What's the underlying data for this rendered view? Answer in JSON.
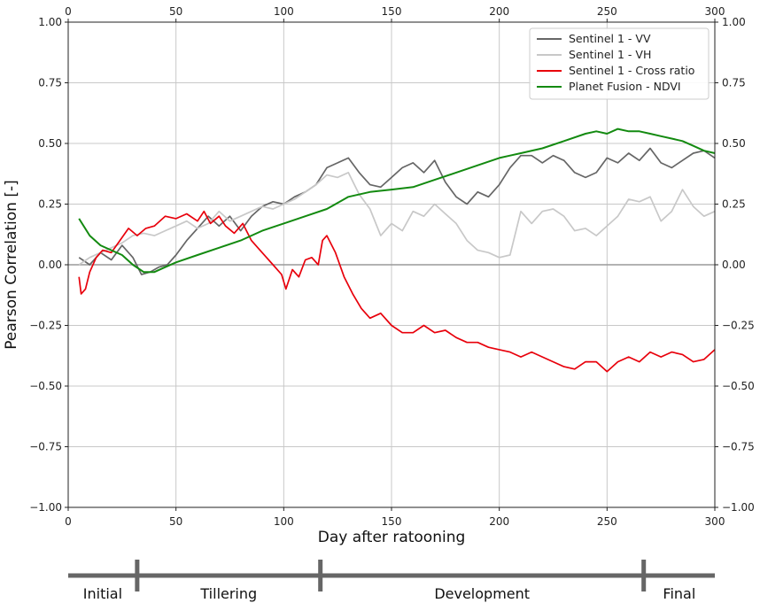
{
  "chart_data": {
    "type": "line",
    "xlabel": "Day after ratooning",
    "ylabel": "Pearson Correlation [-]",
    "xlim": [
      0,
      300
    ],
    "ylim": [
      -1.0,
      1.0
    ],
    "x_ticks": [
      0,
      50,
      100,
      150,
      200,
      250,
      300
    ],
    "y_ticks": [
      -1.0,
      -0.75,
      -0.5,
      -0.25,
      0.0,
      0.25,
      0.5,
      0.75,
      1.0
    ],
    "x_tick_labels": [
      "0",
      "50",
      "100",
      "150",
      "200",
      "250",
      "300"
    ],
    "y_tick_labels": [
      "−1.00",
      "−0.75",
      "−0.50",
      "−0.25",
      "0.00",
      "0.25",
      "0.50",
      "0.75",
      "1.00"
    ],
    "right_tick_labels": [
      "−1.00",
      "−0.75",
      "−0.50",
      "−0.25",
      "0.00",
      "0.25",
      "0.50",
      "0.75",
      "1.00"
    ],
    "grid": true,
    "legend_position": "top-right",
    "series": [
      {
        "name": "Sentinel 1 - VV",
        "color": "#666666",
        "x": [
          5,
          10,
          15,
          20,
          25,
          30,
          34,
          38,
          42,
          46,
          50,
          55,
          60,
          65,
          70,
          75,
          80,
          85,
          90,
          95,
          100,
          105,
          110,
          115,
          120,
          125,
          130,
          135,
          140,
          145,
          150,
          155,
          160,
          165,
          170,
          175,
          180,
          185,
          190,
          195,
          200,
          205,
          210,
          215,
          220,
          225,
          230,
          235,
          240,
          245,
          250,
          255,
          260,
          265,
          270,
          275,
          280,
          285,
          290,
          295,
          300
        ],
        "y": [
          0.03,
          0.0,
          0.05,
          0.02,
          0.08,
          0.03,
          -0.04,
          -0.03,
          -0.01,
          0.0,
          0.04,
          0.1,
          0.15,
          0.2,
          0.16,
          0.2,
          0.14,
          0.2,
          0.24,
          0.26,
          0.25,
          0.28,
          0.3,
          0.33,
          0.4,
          0.42,
          0.44,
          0.38,
          0.33,
          0.32,
          0.36,
          0.4,
          0.42,
          0.38,
          0.43,
          0.34,
          0.28,
          0.25,
          0.3,
          0.28,
          0.33,
          0.4,
          0.45,
          0.45,
          0.42,
          0.45,
          0.43,
          0.38,
          0.36,
          0.38,
          0.44,
          0.42,
          0.46,
          0.43,
          0.48,
          0.42,
          0.4,
          0.43,
          0.46,
          0.47,
          0.44
        ]
      },
      {
        "name": "Sentinel 1 - VH",
        "color": "#c8c8c8",
        "x": [
          5,
          10,
          15,
          20,
          25,
          30,
          35,
          40,
          45,
          50,
          55,
          60,
          65,
          70,
          75,
          80,
          85,
          90,
          95,
          100,
          105,
          110,
          115,
          120,
          125,
          130,
          135,
          140,
          145,
          150,
          155,
          160,
          165,
          170,
          175,
          180,
          185,
          190,
          195,
          200,
          205,
          210,
          215,
          220,
          225,
          230,
          235,
          240,
          245,
          250,
          255,
          260,
          265,
          270,
          275,
          280,
          285,
          290,
          295,
          300
        ],
        "y": [
          0.0,
          0.03,
          0.05,
          0.07,
          0.09,
          0.12,
          0.13,
          0.12,
          0.14,
          0.16,
          0.18,
          0.15,
          0.17,
          0.22,
          0.18,
          0.2,
          0.22,
          0.24,
          0.23,
          0.25,
          0.27,
          0.3,
          0.33,
          0.37,
          0.36,
          0.38,
          0.29,
          0.23,
          0.12,
          0.17,
          0.14,
          0.22,
          0.2,
          0.25,
          0.21,
          0.17,
          0.1,
          0.06,
          0.05,
          0.03,
          0.04,
          0.22,
          0.17,
          0.22,
          0.23,
          0.2,
          0.14,
          0.15,
          0.12,
          0.16,
          0.2,
          0.27,
          0.26,
          0.28,
          0.18,
          0.22,
          0.31,
          0.24,
          0.2,
          0.22
        ]
      },
      {
        "name": "Sentinel 1 - Cross ratio",
        "color": "#e8000b",
        "x": [
          5,
          6,
          8,
          10,
          13,
          16,
          20,
          24,
          28,
          32,
          36,
          40,
          45,
          50,
          55,
          60,
          63,
          66,
          70,
          73,
          77,
          81,
          85,
          88,
          92,
          95,
          99,
          101,
          104,
          107,
          110,
          113,
          116,
          118,
          120,
          124,
          128,
          132,
          136,
          140,
          145,
          150,
          155,
          160,
          165,
          170,
          175,
          180,
          185,
          190,
          195,
          200,
          205,
          210,
          215,
          220,
          225,
          230,
          235,
          240,
          245,
          250,
          255,
          260,
          265,
          270,
          275,
          280,
          285,
          290,
          295,
          300
        ],
        "y": [
          -0.05,
          -0.12,
          -0.1,
          -0.03,
          0.03,
          0.06,
          0.05,
          0.1,
          0.15,
          0.12,
          0.15,
          0.16,
          0.2,
          0.19,
          0.21,
          0.18,
          0.22,
          0.17,
          0.2,
          0.16,
          0.13,
          0.17,
          0.1,
          0.07,
          0.03,
          0.0,
          -0.04,
          -0.1,
          -0.02,
          -0.05,
          0.02,
          0.03,
          0.0,
          0.1,
          0.12,
          0.05,
          -0.05,
          -0.12,
          -0.18,
          -0.22,
          -0.2,
          -0.25,
          -0.28,
          -0.28,
          -0.25,
          -0.28,
          -0.27,
          -0.3,
          -0.32,
          -0.32,
          -0.34,
          -0.35,
          -0.36,
          -0.38,
          -0.36,
          -0.38,
          -0.4,
          -0.42,
          -0.43,
          -0.4,
          -0.4,
          -0.44,
          -0.4,
          -0.38,
          -0.4,
          -0.36,
          -0.38,
          -0.36,
          -0.37,
          -0.4,
          -0.39,
          -0.35
        ]
      },
      {
        "name": "Planet Fusion - NDVI",
        "color": "#138a10",
        "x": [
          5,
          10,
          15,
          20,
          25,
          30,
          35,
          40,
          45,
          50,
          60,
          70,
          80,
          90,
          100,
          110,
          120,
          130,
          140,
          150,
          160,
          170,
          180,
          190,
          200,
          205,
          210,
          220,
          230,
          240,
          245,
          250,
          255,
          260,
          265,
          270,
          275,
          280,
          285,
          290,
          295,
          300
        ],
        "y": [
          0.19,
          0.12,
          0.08,
          0.06,
          0.04,
          0.0,
          -0.03,
          -0.03,
          -0.01,
          0.01,
          0.04,
          0.07,
          0.1,
          0.14,
          0.17,
          0.2,
          0.23,
          0.28,
          0.3,
          0.31,
          0.32,
          0.35,
          0.38,
          0.41,
          0.44,
          0.45,
          0.46,
          0.48,
          0.51,
          0.54,
          0.55,
          0.54,
          0.56,
          0.55,
          0.55,
          0.54,
          0.53,
          0.52,
          0.51,
          0.49,
          0.47,
          0.46
        ]
      }
    ]
  },
  "stages": {
    "ticks_x": [
      32,
      117,
      267
    ],
    "labels": [
      {
        "text": "Initial",
        "x_from": 0,
        "x_to": 32
      },
      {
        "text": "Tillering",
        "x_from": 32,
        "x_to": 117
      },
      {
        "text": "Development",
        "x_from": 117,
        "x_to": 267
      },
      {
        "text": "Final",
        "x_from": 267,
        "x_to": 300
      }
    ]
  }
}
